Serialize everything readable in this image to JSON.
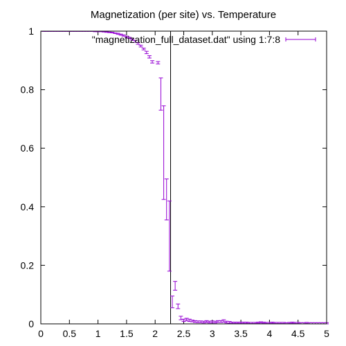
{
  "chart_data": {
    "type": "scatter",
    "title": "Magnetization (per site) vs. Temperature",
    "xlabel": "",
    "ylabel": "",
    "xlim": [
      0,
      5
    ],
    "ylim": [
      0,
      1
    ],
    "xticks": [
      "0",
      "0.5",
      "1",
      "1.5",
      "2",
      "2.5",
      "3",
      "3.5",
      "4",
      "4.5",
      "5"
    ],
    "yticks": [
      "0",
      "0.2",
      "0.4",
      "0.6",
      "0.8",
      "1"
    ],
    "legend_position": "top-right",
    "vertical_line_x": 2.27,
    "series": [
      {
        "name": "\"magnetization_full_dataset.dat\" using 1:7:8",
        "color": "#9400d3",
        "errorbars": true,
        "points": [
          {
            "x": 0.05,
            "y": 1.0,
            "err": 0.001
          },
          {
            "x": 0.1,
            "y": 1.0,
            "err": 0.001
          },
          {
            "x": 0.15,
            "y": 1.0,
            "err": 0.001
          },
          {
            "x": 0.2,
            "y": 1.0,
            "err": 0.001
          },
          {
            "x": 0.25,
            "y": 1.0,
            "err": 0.001
          },
          {
            "x": 0.3,
            "y": 1.0,
            "err": 0.001
          },
          {
            "x": 0.35,
            "y": 1.0,
            "err": 0.001
          },
          {
            "x": 0.4,
            "y": 1.0,
            "err": 0.001
          },
          {
            "x": 0.45,
            "y": 1.0,
            "err": 0.001
          },
          {
            "x": 0.5,
            "y": 1.0,
            "err": 0.001
          },
          {
            "x": 0.55,
            "y": 1.0,
            "err": 0.001
          },
          {
            "x": 0.6,
            "y": 1.0,
            "err": 0.001
          },
          {
            "x": 0.65,
            "y": 1.0,
            "err": 0.001
          },
          {
            "x": 0.7,
            "y": 1.0,
            "err": 0.001
          },
          {
            "x": 0.75,
            "y": 1.0,
            "err": 0.001
          },
          {
            "x": 0.8,
            "y": 1.0,
            "err": 0.001
          },
          {
            "x": 0.85,
            "y": 1.0,
            "err": 0.001
          },
          {
            "x": 0.9,
            "y": 1.0,
            "err": 0.001
          },
          {
            "x": 0.95,
            "y": 0.999,
            "err": 0.001
          },
          {
            "x": 1.0,
            "y": 0.999,
            "err": 0.001
          },
          {
            "x": 1.05,
            "y": 0.999,
            "err": 0.001
          },
          {
            "x": 1.1,
            "y": 0.998,
            "err": 0.001
          },
          {
            "x": 1.15,
            "y": 0.997,
            "err": 0.001
          },
          {
            "x": 1.2,
            "y": 0.996,
            "err": 0.001
          },
          {
            "x": 1.25,
            "y": 0.995,
            "err": 0.001
          },
          {
            "x": 1.3,
            "y": 0.993,
            "err": 0.001
          },
          {
            "x": 1.35,
            "y": 0.991,
            "err": 0.002
          },
          {
            "x": 1.4,
            "y": 0.988,
            "err": 0.002
          },
          {
            "x": 1.45,
            "y": 0.985,
            "err": 0.002
          },
          {
            "x": 1.5,
            "y": 0.981,
            "err": 0.002
          },
          {
            "x": 1.55,
            "y": 0.977,
            "err": 0.002
          },
          {
            "x": 1.6,
            "y": 0.971,
            "err": 0.002
          },
          {
            "x": 1.65,
            "y": 0.965,
            "err": 0.003
          },
          {
            "x": 1.7,
            "y": 0.958,
            "err": 0.003
          },
          {
            "x": 1.75,
            "y": 0.949,
            "err": 0.003
          },
          {
            "x": 1.8,
            "y": 0.939,
            "err": 0.003
          },
          {
            "x": 1.85,
            "y": 0.927,
            "err": 0.004
          },
          {
            "x": 1.9,
            "y": 0.912,
            "err": 0.004
          },
          {
            "x": 1.95,
            "y": 0.895,
            "err": 0.004
          },
          {
            "x": 2.05,
            "y": 0.892,
            "err": 0.004
          },
          {
            "x": 2.1,
            "y": 0.785,
            "err": 0.055
          },
          {
            "x": 2.15,
            "y": 0.585,
            "err": 0.16
          },
          {
            "x": 2.2,
            "y": 0.425,
            "err": 0.07
          },
          {
            "x": 2.25,
            "y": 0.3,
            "err": 0.12
          },
          {
            "x": 2.3,
            "y": 0.075,
            "err": 0.02
          },
          {
            "x": 2.35,
            "y": 0.13,
            "err": 0.015
          },
          {
            "x": 2.4,
            "y": 0.06,
            "err": 0.008
          },
          {
            "x": 2.45,
            "y": 0.02,
            "err": 0.006
          },
          {
            "x": 2.5,
            "y": 0.012,
            "err": 0.004
          },
          {
            "x": 2.55,
            "y": 0.015,
            "err": 0.004
          },
          {
            "x": 2.6,
            "y": 0.012,
            "err": 0.004
          },
          {
            "x": 2.65,
            "y": 0.01,
            "err": 0.003
          },
          {
            "x": 2.7,
            "y": 0.008,
            "err": 0.003
          },
          {
            "x": 2.75,
            "y": 0.007,
            "err": 0.003
          },
          {
            "x": 2.8,
            "y": 0.007,
            "err": 0.003
          },
          {
            "x": 2.85,
            "y": 0.006,
            "err": 0.003
          },
          {
            "x": 2.9,
            "y": 0.008,
            "err": 0.003
          },
          {
            "x": 2.95,
            "y": 0.006,
            "err": 0.003
          },
          {
            "x": 3.0,
            "y": 0.007,
            "err": 0.003
          },
          {
            "x": 3.05,
            "y": 0.006,
            "err": 0.003
          },
          {
            "x": 3.1,
            "y": 0.008,
            "err": 0.003
          },
          {
            "x": 3.15,
            "y": 0.008,
            "err": 0.003
          },
          {
            "x": 3.2,
            "y": 0.01,
            "err": 0.004
          },
          {
            "x": 3.25,
            "y": 0.006,
            "err": 0.003
          },
          {
            "x": 3.3,
            "y": 0.005,
            "err": 0.003
          },
          {
            "x": 3.35,
            "y": 0.004,
            "err": 0.002
          },
          {
            "x": 3.4,
            "y": 0.004,
            "err": 0.002
          },
          {
            "x": 3.45,
            "y": 0.004,
            "err": 0.002
          },
          {
            "x": 3.5,
            "y": 0.004,
            "err": 0.002
          },
          {
            "x": 3.55,
            "y": 0.004,
            "err": 0.002
          },
          {
            "x": 3.6,
            "y": 0.004,
            "err": 0.002
          },
          {
            "x": 3.65,
            "y": 0.003,
            "err": 0.002
          },
          {
            "x": 3.7,
            "y": 0.003,
            "err": 0.002
          },
          {
            "x": 3.75,
            "y": 0.003,
            "err": 0.002
          },
          {
            "x": 3.8,
            "y": 0.004,
            "err": 0.002
          },
          {
            "x": 3.85,
            "y": 0.005,
            "err": 0.002
          },
          {
            "x": 3.9,
            "y": 0.004,
            "err": 0.002
          },
          {
            "x": 3.95,
            "y": 0.003,
            "err": 0.002
          },
          {
            "x": 4.0,
            "y": 0.003,
            "err": 0.002
          },
          {
            "x": 4.05,
            "y": 0.004,
            "err": 0.002
          },
          {
            "x": 4.1,
            "y": 0.003,
            "err": 0.002
          },
          {
            "x": 4.15,
            "y": 0.003,
            "err": 0.002
          },
          {
            "x": 4.2,
            "y": 0.003,
            "err": 0.002
          },
          {
            "x": 4.25,
            "y": 0.003,
            "err": 0.002
          },
          {
            "x": 4.3,
            "y": 0.002,
            "err": 0.002
          },
          {
            "x": 4.35,
            "y": 0.003,
            "err": 0.002
          },
          {
            "x": 4.4,
            "y": 0.004,
            "err": 0.002
          },
          {
            "x": 4.45,
            "y": 0.003,
            "err": 0.002
          },
          {
            "x": 4.5,
            "y": 0.003,
            "err": 0.002
          },
          {
            "x": 4.55,
            "y": 0.002,
            "err": 0.002
          },
          {
            "x": 4.6,
            "y": 0.002,
            "err": 0.002
          },
          {
            "x": 4.65,
            "y": 0.003,
            "err": 0.002
          },
          {
            "x": 4.7,
            "y": 0.002,
            "err": 0.002
          },
          {
            "x": 4.75,
            "y": 0.002,
            "err": 0.002
          },
          {
            "x": 4.8,
            "y": 0.002,
            "err": 0.002
          },
          {
            "x": 4.85,
            "y": 0.002,
            "err": 0.002
          },
          {
            "x": 4.9,
            "y": 0.002,
            "err": 0.002
          },
          {
            "x": 4.95,
            "y": 0.002,
            "err": 0.002
          },
          {
            "x": 5.0,
            "y": 0.002,
            "err": 0.002
          }
        ]
      }
    ]
  }
}
